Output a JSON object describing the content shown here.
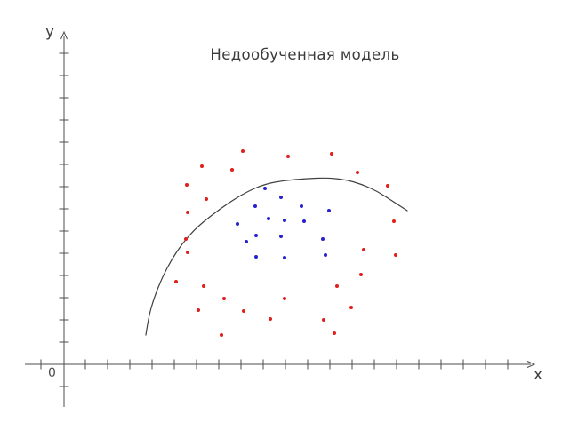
{
  "title": "Недообученная модель",
  "axes": {
    "x_label": "x",
    "y_label": "y",
    "origin_label": "0"
  },
  "colors": {
    "red_class": "#e11d1d",
    "blue_class": "#2621cf",
    "curve": "#3f3f3f",
    "axis": "#4d4d4d",
    "text": "#3b3b3b"
  },
  "chart_data": {
    "type": "scatter",
    "title": "Недообученная модель",
    "xlabel": "x",
    "ylabel": "y",
    "grid": false,
    "legend": "none",
    "tick_labels": "none (unlabeled ticks on both axes)",
    "units": "canvas pixels, 650x485, y increases downward",
    "x_axis": {
      "y": 410,
      "x_start": 28,
      "x_end": 601,
      "arrow": true,
      "tick_half_len": 5.5,
      "tick_xs": [
        46,
        96,
        121,
        146,
        171,
        196,
        221,
        246,
        271,
        296,
        321,
        346,
        371,
        396,
        421,
        446,
        471,
        496,
        521,
        546,
        571
      ]
    },
    "y_axis": {
      "x": 72,
      "y_start": 36,
      "y_end": 458,
      "arrow": true,
      "tick_half_len": 5.5,
      "tick_ys": [
        60,
        85,
        110,
        135,
        160,
        185,
        210,
        235,
        260,
        285,
        310,
        335,
        360,
        385,
        435
      ]
    },
    "series": [
      {
        "name": "red-class-points",
        "color": "#e11d1d",
        "marker": "dot",
        "marker_radius": 2,
        "points": [
          [
            273,
            170
          ],
          [
            373,
            173
          ],
          [
            324,
            176
          ],
          [
            227,
            187
          ],
          [
            261,
            191
          ],
          [
            402,
            194
          ],
          [
            210,
            208
          ],
          [
            436,
            209
          ],
          [
            232,
            224
          ],
          [
            211,
            239
          ],
          [
            443,
            249
          ],
          [
            209,
            269
          ],
          [
            409,
            281
          ],
          [
            211,
            284
          ],
          [
            445,
            287
          ],
          [
            406,
            309
          ],
          [
            198,
            317
          ],
          [
            229,
            322
          ],
          [
            379,
            322
          ],
          [
            252,
            336
          ],
          [
            320,
            336
          ],
          [
            395,
            346
          ],
          [
            223,
            349
          ],
          [
            274,
            350
          ],
          [
            304,
            359
          ],
          [
            364,
            360
          ],
          [
            376,
            375
          ],
          [
            249,
            377
          ]
        ]
      },
      {
        "name": "blue-class-points",
        "color": "#2621cf",
        "marker": "dot",
        "marker_radius": 2,
        "points": [
          [
            298,
            212
          ],
          [
            316,
            222
          ],
          [
            287,
            232
          ],
          [
            339,
            232
          ],
          [
            370,
            237
          ],
          [
            302,
            246
          ],
          [
            320,
            248
          ],
          [
            342,
            249
          ],
          [
            267,
            252
          ],
          [
            288,
            265
          ],
          [
            316,
            266
          ],
          [
            363,
            269
          ],
          [
            277,
            272
          ],
          [
            366,
            287
          ],
          [
            288,
            289
          ],
          [
            320,
            290
          ]
        ]
      }
    ],
    "decision_boundary": {
      "name": "underfit-boundary-curve",
      "color": "#3f3f3f",
      "stroke_width": 1.2,
      "points": [
        [
          164,
          377
        ],
        [
          167,
          357
        ],
        [
          173,
          336
        ],
        [
          182,
          313
        ],
        [
          193,
          292
        ],
        [
          205,
          274
        ],
        [
          220,
          257
        ],
        [
          237,
          243
        ],
        [
          256,
          229
        ],
        [
          277,
          216
        ],
        [
          298,
          207
        ],
        [
          320,
          203
        ],
        [
          344,
          201
        ],
        [
          367,
          200
        ],
        [
          388,
          202
        ],
        [
          406,
          207
        ],
        [
          424,
          215
        ],
        [
          441,
          226
        ],
        [
          458,
          237
        ]
      ]
    }
  }
}
